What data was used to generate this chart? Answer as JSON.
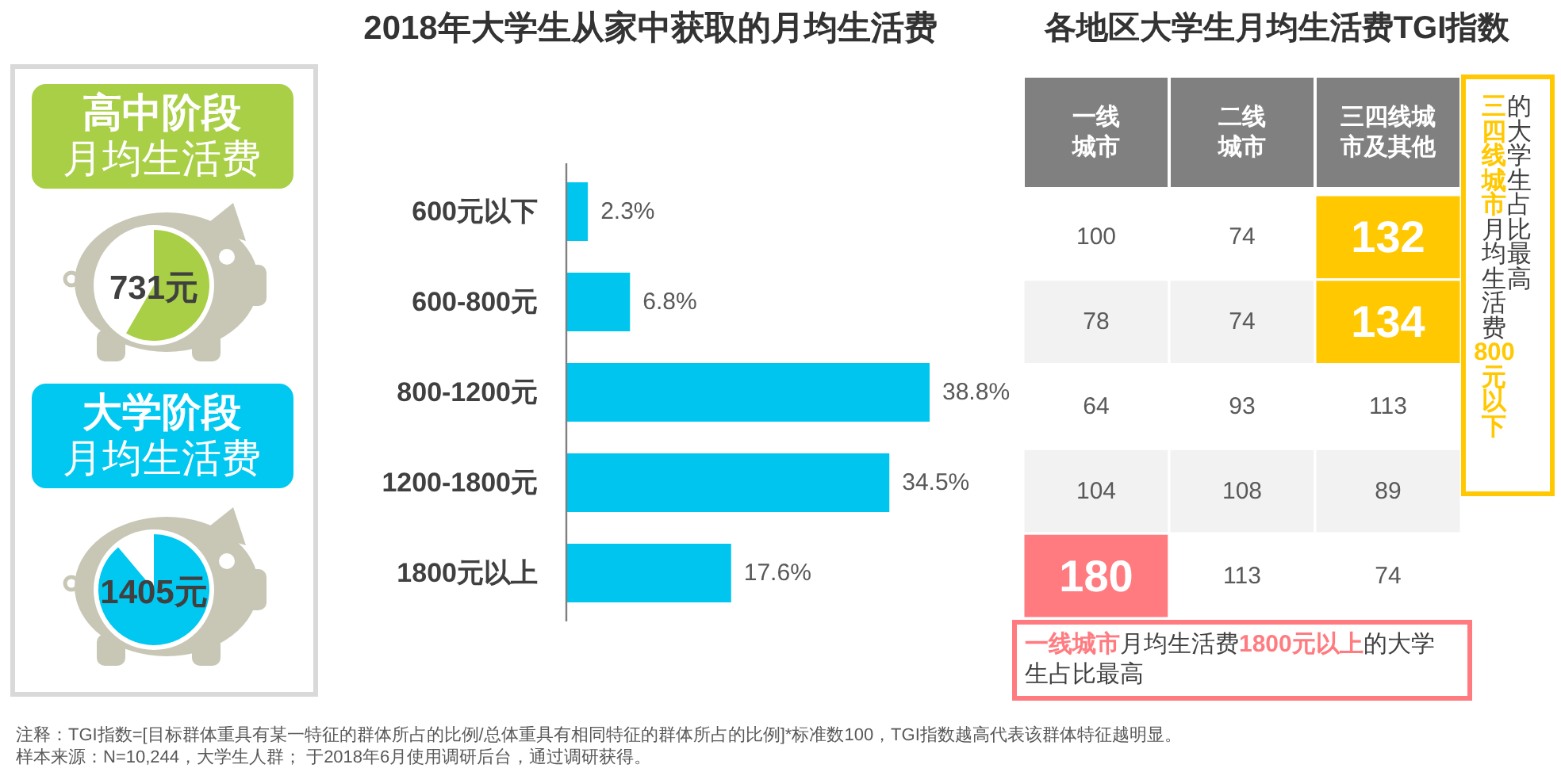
{
  "chart_data": [
    {
      "type": "other",
      "categories": [
        "高中阶段月均生活费",
        "大学阶段月均生活费"
      ],
      "value_labels": [
        "731元",
        "1405元"
      ],
      "colors": [
        "#a8cf45",
        "#00c8f0"
      ],
      "annotations": [
        "注释：TGI指数=[目标群体重具有某一特征的群体所占的比例/总体重具有相同特征的群体所占的比例]*标准数100，TGI指数越高代表该群体特征越明显。",
        "样本来源：N=10,244，大学生人群； 于2018年6月使用调研后台，通过调研获得。"
      ]
    },
    {
      "type": "bar",
      "orientation": "horizontal",
      "title": "2018年大学生从家中获取的月均生活费",
      "categories": [
        "600元以下",
        "600-800元",
        "800-1200元",
        "1200-1800元",
        "1800元以上"
      ],
      "values": [
        2.3,
        6.8,
        38.8,
        34.5,
        17.6
      ],
      "value_labels": [
        "2.3%",
        "6.8%",
        "38.8%",
        "34.5%",
        "17.6%"
      ],
      "color": "#00c6ef"
    },
    {
      "type": "heatmap",
      "title": "各地区大学生月均生活费TGI指数",
      "categories": [
        "一线城市",
        "二线城市",
        "三四线城市及其他"
      ],
      "y_categories": [
        null,
        null,
        null,
        null,
        null
      ],
      "cells": [
        [
          100,
          74,
          132
        ],
        [
          78,
          74,
          134
        ],
        [
          64,
          93,
          113
        ],
        [
          104,
          108,
          89
        ],
        [
          180,
          113,
          74
        ]
      ],
      "data_labels": true,
      "colors": [
        [
          "#ffffff",
          "#ffffff",
          "#ffc800"
        ],
        [
          "#f2f2f2",
          "#f2f2f2",
          "#ffc800"
        ],
        [
          "#ffffff",
          "#ffffff",
          "#ffffff"
        ],
        [
          "#f2f2f2",
          "#f2f2f2",
          "#f2f2f2"
        ],
        [
          "#ff7b80",
          "#ffffff",
          "#ffffff"
        ]
      ],
      "annotations": [
        "**三四线城市**月均生活费**800元以下**",
        "的大学生占比最高",
        "**一线城市**月均生活费**1800元以上**的大学生占比最高"
      ]
    }
  ]
}
